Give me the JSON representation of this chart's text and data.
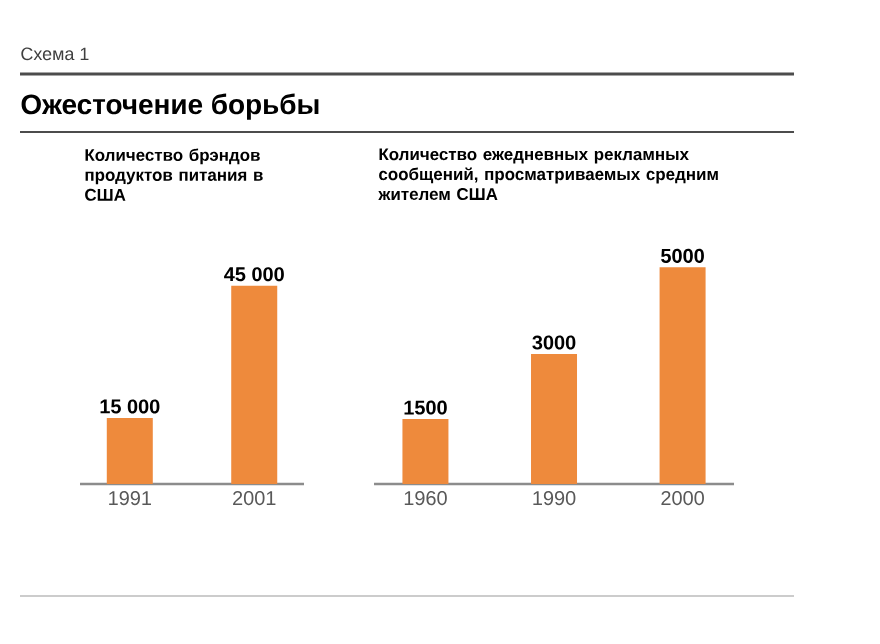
{
  "chart_data": [
    {
      "type": "other",
      "subtitle": "Схема 1",
      "title": "Ожесточение борьбы"
    },
    {
      "type": "bar",
      "title": "Количество брэндов продуктов питания в США",
      "categories": [
        "1991",
        "2001"
      ],
      "values": [
        15000,
        45000
      ],
      "value_labels": [
        "15 000",
        "45 000"
      ],
      "color": "#ee8a3c"
    },
    {
      "type": "bar",
      "title": "Количество ежедневных рекламных сообщений, просматриваемых средним жителем США",
      "categories": [
        "1960",
        "1990",
        "2000"
      ],
      "values": [
        1500,
        3000,
        5000
      ],
      "data_labels": true,
      "color": "#ee8a3c"
    }
  ]
}
